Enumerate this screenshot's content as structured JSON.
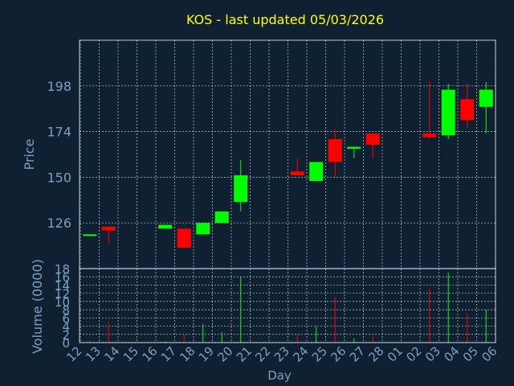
{
  "colors": {
    "background": "#102033",
    "up": "#00ff00",
    "down": "#ff0000",
    "title": "#ffff00",
    "axis_text": "#7f9fbf",
    "grid": "#ffffff"
  },
  "chart_data": {
    "type": "candlestick",
    "title": "KOS - last updated 05/03/2026",
    "xlabel": "Day",
    "price_ylabel": "Price",
    "volume_ylabel": "Volume (0000)",
    "price_yticks": [
      126,
      150,
      174,
      198
    ],
    "price_ylim": [
      102,
      222
    ],
    "volume_yticks": [
      0,
      2,
      4,
      6,
      8,
      10,
      12,
      14,
      16,
      18
    ],
    "volume_ylim": [
      0,
      18
    ],
    "x_tick_labels": [
      "12",
      "13",
      "14",
      "15",
      "16",
      "17",
      "18",
      "19",
      "20",
      "21",
      "22",
      "23",
      "24",
      "25",
      "26",
      "27",
      "28",
      "01",
      "02",
      "03",
      "04",
      "05",
      "06"
    ],
    "grid": true,
    "candles": [
      {
        "day": "12",
        "open": 120,
        "high": 120,
        "low": 120,
        "close": 120,
        "volume": 0.3
      },
      {
        "day": "13",
        "open": 124,
        "high": 124,
        "low": 115,
        "close": 122,
        "volume": 5
      },
      {
        "day": "16",
        "open": 123,
        "high": 125,
        "low": 123,
        "close": 125,
        "volume": 0.3
      },
      {
        "day": "17",
        "open": 123,
        "high": 123,
        "low": 113,
        "close": 113,
        "volume": 2
      },
      {
        "day": "18",
        "open": 120,
        "high": 126,
        "low": 120,
        "close": 126,
        "volume": 4.5
      },
      {
        "day": "19",
        "open": 126,
        "high": 132,
        "low": 126,
        "close": 132,
        "volume": 2.5
      },
      {
        "day": "20",
        "open": 137,
        "high": 159,
        "low": 132,
        "close": 151,
        "volume": 16
      },
      {
        "day": "23",
        "open": 153,
        "high": 160,
        "low": 151,
        "close": 151,
        "volume": 2
      },
      {
        "day": "24",
        "open": 148,
        "high": 158,
        "low": 148,
        "close": 158,
        "volume": 4
      },
      {
        "day": "25",
        "open": 170,
        "high": 175,
        "low": 150,
        "close": 158,
        "volume": 11
      },
      {
        "day": "26",
        "open": 165,
        "high": 166,
        "low": 160,
        "close": 166,
        "volume": 1
      },
      {
        "day": "27",
        "open": 173,
        "high": 173,
        "low": 160,
        "close": 167,
        "volume": 1.5
      },
      {
        "day": "02",
        "open": 173,
        "high": 200,
        "low": 170,
        "close": 171,
        "volume": 13
      },
      {
        "day": "03",
        "open": 172,
        "high": 199,
        "low": 170,
        "close": 196,
        "volume": 17
      },
      {
        "day": "04",
        "open": 191,
        "high": 199,
        "low": 176,
        "close": 180,
        "volume": 7
      },
      {
        "day": "05",
        "open": 187,
        "high": 200,
        "low": 173,
        "close": 196,
        "volume": 8
      }
    ]
  }
}
